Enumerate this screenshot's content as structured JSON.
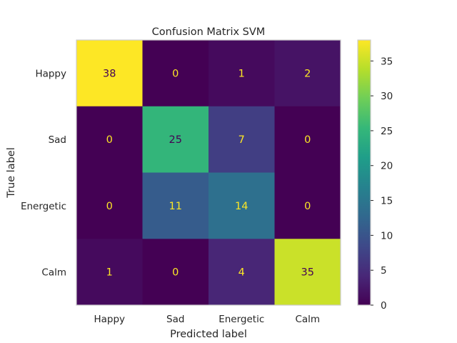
{
  "chart_data": {
    "type": "heatmap",
    "title": "Confusion Matrix SVM",
    "xlabel": "Predicted label",
    "ylabel": "True label",
    "row_labels": [
      "Happy",
      "Sad",
      "Energetic",
      "Calm"
    ],
    "col_labels": [
      "Happy",
      "Sad",
      "Energetic",
      "Calm"
    ],
    "values": [
      [
        38,
        0,
        1,
        2
      ],
      [
        0,
        25,
        7,
        0
      ],
      [
        0,
        11,
        14,
        0
      ],
      [
        1,
        0,
        4,
        35
      ]
    ],
    "colorscale": "viridis",
    "vmin": 0,
    "vmax": 38,
    "colorbar_ticks": [
      0,
      5,
      10,
      15,
      20,
      25,
      30,
      35
    ],
    "grid": false,
    "text_colors": {
      "on_dark": "#fde725",
      "on_light": "#440154"
    }
  }
}
